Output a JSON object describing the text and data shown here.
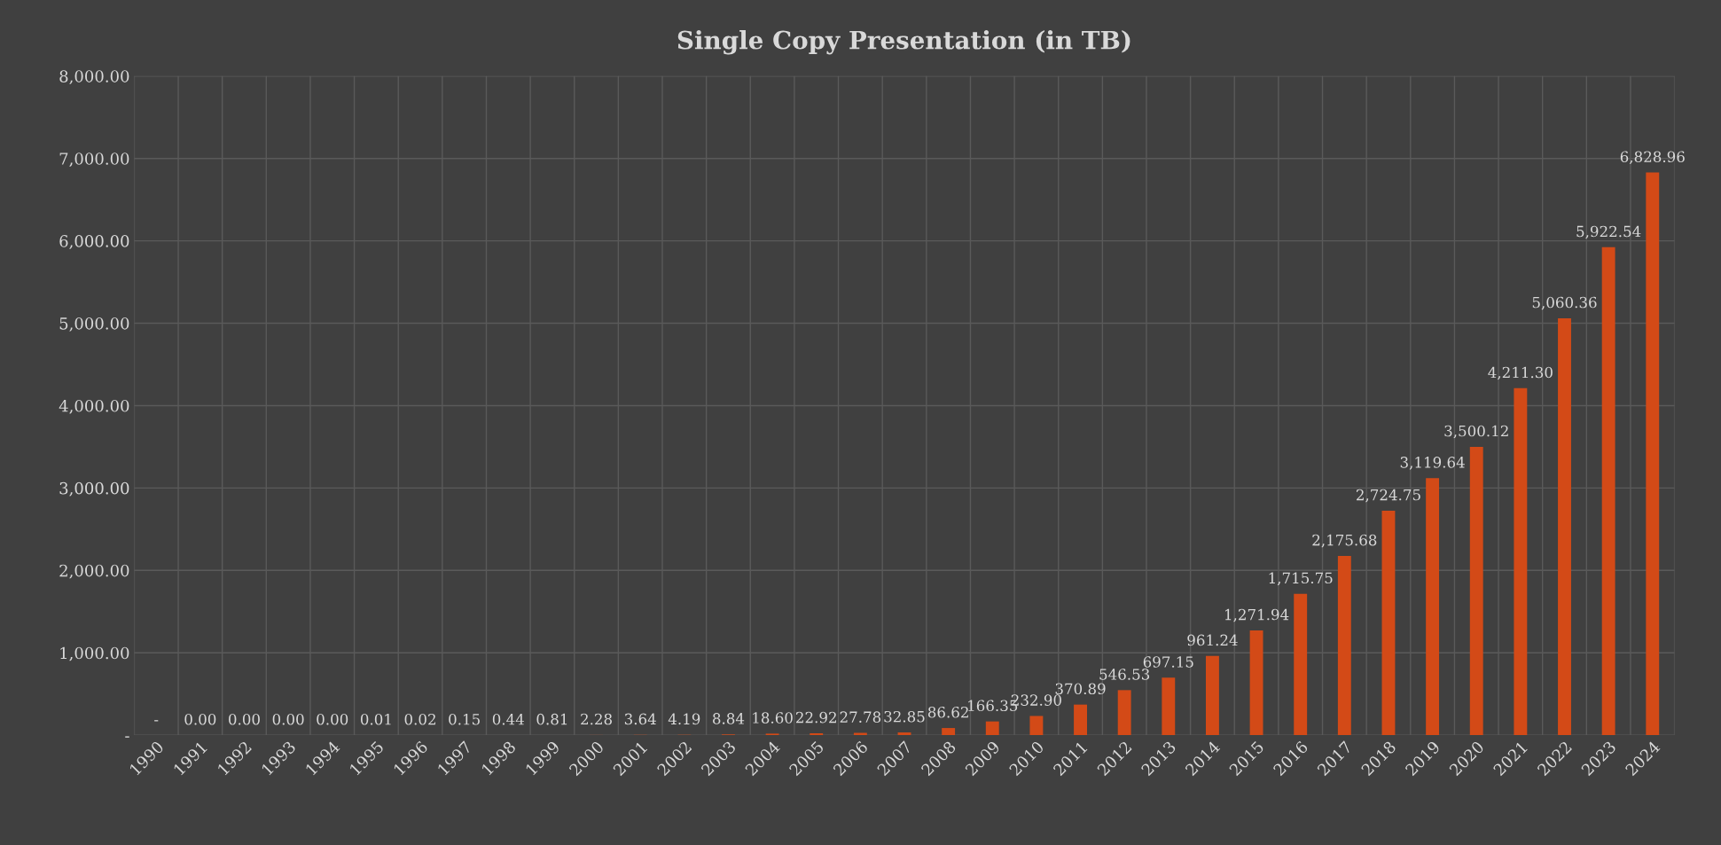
{
  "chart_data": {
    "type": "bar",
    "title": "Single Copy Presentation (in TB)",
    "categories": [
      "1990",
      "1991",
      "1992",
      "1993",
      "1994",
      "1995",
      "1996",
      "1997",
      "1998",
      "1999",
      "2000",
      "2001",
      "2002",
      "2003",
      "2004",
      "2005",
      "2006",
      "2007",
      "2008",
      "2009",
      "2010",
      "2011",
      "2012",
      "2013",
      "2014",
      "2015",
      "2016",
      "2017",
      "2018",
      "2019",
      "2020",
      "2021",
      "2022",
      "2023",
      "2024"
    ],
    "values": [
      0,
      0.001,
      0.002,
      0.003,
      0.004,
      0.01,
      0.02,
      0.15,
      0.44,
      0.81,
      2.28,
      3.64,
      4.19,
      8.84,
      18.6,
      22.92,
      27.78,
      32.85,
      86.62,
      166.35,
      232.9,
      370.89,
      546.53,
      697.15,
      961.24,
      1271.94,
      1715.75,
      2175.68,
      2724.75,
      3119.64,
      3500.12,
      4211.3,
      5060.36,
      5922.54,
      6828.96
    ],
    "value_labels": [
      "-",
      "0.00",
      "0.00",
      "0.00",
      "0.00",
      "0.01",
      "0.02",
      "0.15",
      "0.44",
      "0.81",
      "2.28",
      "3.64",
      "4.19",
      "8.84",
      "18.60",
      "22.92",
      "27.78",
      "32.85",
      "86.62",
      "166.35",
      "232.90",
      "370.89",
      "546.53",
      "697.15",
      "961.24",
      "1,271.94",
      "1,715.75",
      "2,175.68",
      "2,724.75",
      "3,119.64",
      "3,500.12",
      "4,211.30",
      "5,060.36",
      "5,922.54",
      "6,828.96"
    ],
    "color": "#d34a17",
    "ylim": [
      0,
      8000
    ],
    "yticks": [
      {
        "value": 0,
        "label": "-"
      },
      {
        "value": 1000,
        "label": "1,000.00"
      },
      {
        "value": 2000,
        "label": "2,000.00"
      },
      {
        "value": 3000,
        "label": "3,000.00"
      },
      {
        "value": 4000,
        "label": "4,000.00"
      },
      {
        "value": 5000,
        "label": "5,000.00"
      },
      {
        "value": 6000,
        "label": "6,000.00"
      },
      {
        "value": 7000,
        "label": "7,000.00"
      },
      {
        "value": 8000,
        "label": "8,000.00"
      }
    ],
    "grid": true
  }
}
